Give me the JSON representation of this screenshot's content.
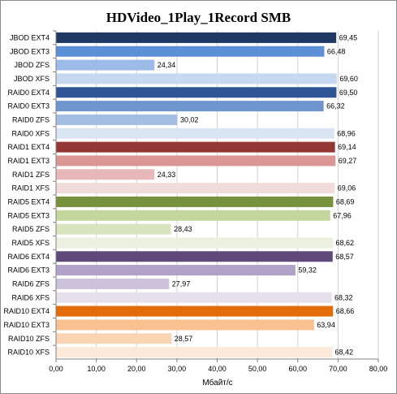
{
  "chart_data": {
    "type": "bar",
    "orientation": "horizontal",
    "title": "HDVideo_1Play_1Record SMB",
    "xlabel": "Мбайт/с",
    "ylabel": "",
    "xlim": [
      0,
      80
    ],
    "xticks": [
      "0,00",
      "10,00",
      "20,00",
      "30,00",
      "40,00",
      "50,00",
      "60,00",
      "70,00",
      "80,00"
    ],
    "grid": "vertical",
    "legend": "none",
    "categories": [
      "JBOD EXT4",
      "JBOD EXT3",
      "JBOD ZFS",
      "JBOD XFS",
      "RAID0 EXT4",
      "RAID0 EXT3",
      "RAID0 ZFS",
      "RAID0 XFS",
      "RAID1 EXT4",
      "RAID1 EXT3",
      "RAID1 ZFS",
      "RAID1 XFS",
      "RAID5 EXT4",
      "RAID5 EXT3",
      "RAID5 ZFS",
      "RAID5 XFS",
      "RAID6 EXT4",
      "RAID6 EXT3",
      "RAID6 ZFS",
      "RAID6 XFS",
      "RAID10 EXT4",
      "RAID10 EXT3",
      "RAID10 ZFS",
      "RAID10 XFS"
    ],
    "values": [
      69.45,
      66.48,
      24.34,
      69.6,
      69.5,
      66.32,
      30.02,
      68.96,
      69.14,
      69.27,
      24.33,
      69.06,
      68.69,
      67.96,
      28.43,
      68.62,
      68.57,
      59.32,
      27.97,
      68.32,
      68.66,
      63.94,
      28.57,
      68.42
    ],
    "value_labels": [
      "69,45",
      "66,48",
      "24,34",
      "69,60",
      "69,50",
      "66,32",
      "30,02",
      "68,96",
      "69,14",
      "69,27",
      "24,33",
      "69,06",
      "68,69",
      "67,96",
      "28,43",
      "68,62",
      "68,57",
      "59,32",
      "27,97",
      "68,32",
      "68,66",
      "63,94",
      "28,57",
      "68,42"
    ],
    "colors": [
      "#1f3864",
      "#5b8fd6",
      "#9dbbe8",
      "#c6d9f1",
      "#2f5597",
      "#6f95cf",
      "#a3bde3",
      "#dae5f4",
      "#943634",
      "#da9694",
      "#e6b9b8",
      "#f2dcdb",
      "#76923c",
      "#c3d69b",
      "#d7e4bd",
      "#ebf1de",
      "#5f497a",
      "#b1a0c7",
      "#ccc1da",
      "#e5e0ec",
      "#e36c09",
      "#fac090",
      "#fbd4b4",
      "#fde9d9"
    ]
  }
}
